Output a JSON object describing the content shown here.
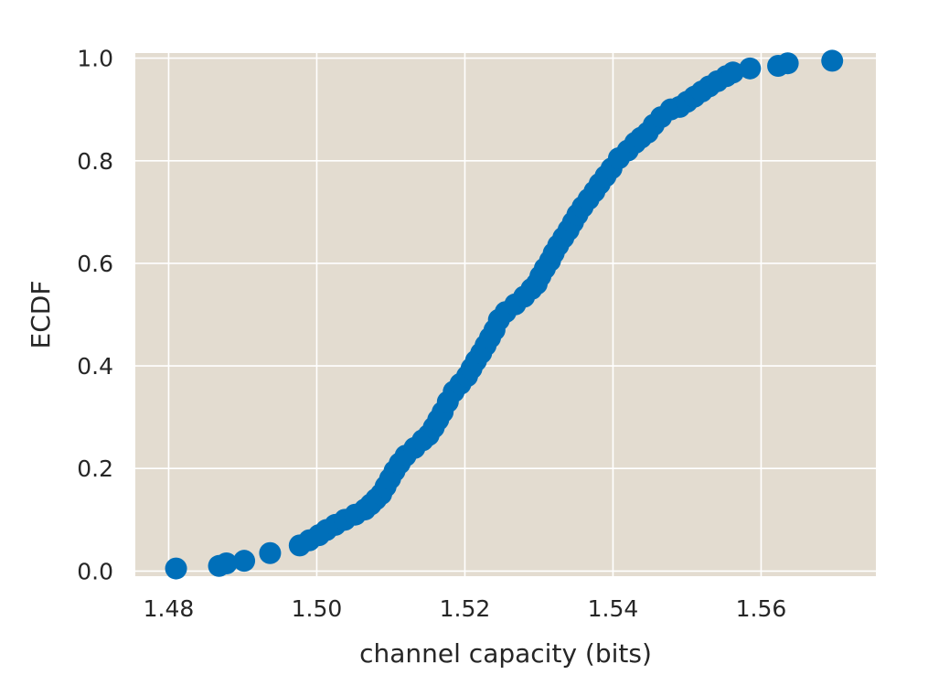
{
  "chart_data": {
    "type": "scatter",
    "title": "",
    "xlabel": "channel capacity (bits)",
    "ylabel": "ECDF",
    "xlim": [
      1.4755,
      1.5755
    ],
    "ylim": [
      -0.01,
      1.01
    ],
    "x_ticks": [
      1.48,
      1.5,
      1.52,
      1.54,
      1.56
    ],
    "x_tick_labels": [
      "1.48",
      "1.50",
      "1.52",
      "1.54",
      "1.56"
    ],
    "y_ticks": [
      0.0,
      0.2,
      0.4,
      0.6,
      0.8,
      1.0
    ],
    "y_tick_labels": [
      "0.0",
      "0.2",
      "0.4",
      "0.6",
      "0.8",
      "1.0"
    ],
    "grid": true,
    "colors": {
      "background": "#e3dcd0",
      "grid": "#ffffff",
      "points": "#006fb9"
    },
    "series": [
      {
        "x": [
          1.481,
          1.4868,
          1.4878,
          1.4902,
          1.4937,
          1.4977,
          1.499,
          1.5003,
          1.5013,
          1.5025,
          1.5038,
          1.5052,
          1.5065,
          1.5073,
          1.508,
          1.5087,
          1.5093,
          1.5099,
          1.5105,
          1.5112,
          1.512,
          1.5132,
          1.5143,
          1.5151,
          1.5158,
          1.5164,
          1.517,
          1.5177,
          1.5185,
          1.5194,
          1.5203,
          1.5209,
          1.5215,
          1.5222,
          1.5228,
          1.5234,
          1.524,
          1.5246,
          1.5255,
          1.5268,
          1.528,
          1.529,
          1.5297,
          1.5302,
          1.5308,
          1.5315,
          1.532,
          1.5326,
          1.5333,
          1.534,
          1.5346,
          1.5352,
          1.5359,
          1.5367,
          1.5375,
          1.5382,
          1.539,
          1.5398,
          1.5408,
          1.542,
          1.543,
          1.5438,
          1.5447,
          1.5455,
          1.5465,
          1.5478,
          1.549,
          1.55,
          1.551,
          1.552,
          1.553,
          1.5541,
          1.5553,
          1.5562,
          1.5585,
          1.5623,
          1.5636,
          1.5696
        ],
        "y": [
          0.005,
          0.01,
          0.015,
          0.02,
          0.035,
          0.05,
          0.06,
          0.07,
          0.08,
          0.09,
          0.1,
          0.11,
          0.12,
          0.13,
          0.14,
          0.15,
          0.165,
          0.18,
          0.195,
          0.21,
          0.225,
          0.24,
          0.255,
          0.265,
          0.28,
          0.295,
          0.31,
          0.33,
          0.35,
          0.365,
          0.38,
          0.395,
          0.41,
          0.425,
          0.44,
          0.455,
          0.47,
          0.49,
          0.505,
          0.52,
          0.535,
          0.55,
          0.56,
          0.575,
          0.59,
          0.605,
          0.62,
          0.635,
          0.65,
          0.665,
          0.68,
          0.695,
          0.71,
          0.725,
          0.74,
          0.755,
          0.77,
          0.785,
          0.805,
          0.82,
          0.835,
          0.845,
          0.855,
          0.87,
          0.885,
          0.9,
          0.905,
          0.915,
          0.925,
          0.935,
          0.945,
          0.955,
          0.965,
          0.972,
          0.98,
          0.985,
          0.99,
          0.995
        ]
      }
    ]
  }
}
